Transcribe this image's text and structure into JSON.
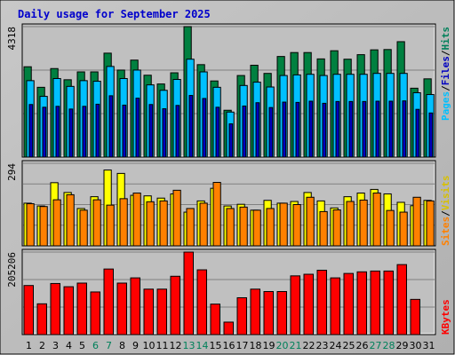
{
  "chart_data": [
    {
      "type": "bar",
      "title": "Daily usage for September 2025",
      "panel": "hits-files-pages",
      "max_label": "4318",
      "ylim": [
        0,
        4318
      ],
      "grid": true,
      "legend_position": "right",
      "legend": [
        "Pages",
        "Files",
        "Hits"
      ],
      "categories": [
        "1",
        "2",
        "3",
        "4",
        "5",
        "6",
        "7",
        "8",
        "9",
        "10",
        "11",
        "12",
        "13",
        "14",
        "15",
        "16",
        "17",
        "18",
        "19",
        "20",
        "21",
        "22",
        "23",
        "24",
        "25",
        "26",
        "27",
        "28",
        "29",
        "30",
        "31"
      ],
      "weekend_categories": [
        "6",
        "7",
        "13",
        "14",
        "20",
        "21",
        "27",
        "28"
      ],
      "series": [
        {
          "name": "Hits",
          "color": "#008040",
          "values": [
            2990,
            2310,
            2930,
            2560,
            2820,
            2820,
            3440,
            2880,
            3210,
            2710,
            2420,
            2790,
            4318,
            3060,
            2520,
            1550,
            2700,
            3040,
            2770,
            3330,
            3460,
            3460,
            3250,
            3520,
            3240,
            3390,
            3550,
            3560,
            3820,
            2280,
            2590
          ]
        },
        {
          "name": "Files",
          "color": "#00c0ff",
          "values": [
            2530,
            2010,
            2600,
            2340,
            2530,
            2510,
            3000,
            2600,
            2880,
            2390,
            2210,
            2570,
            3240,
            2820,
            2310,
            1490,
            2370,
            2480,
            2320,
            2700,
            2720,
            2740,
            2700,
            2740,
            2740,
            2740,
            2770,
            2770,
            2770,
            2130,
            2070
          ]
        },
        {
          "name": "Pages",
          "color": "#0000c0",
          "values": [
            1740,
            1650,
            1680,
            1590,
            1680,
            1750,
            2030,
            1720,
            1950,
            1740,
            1600,
            1710,
            2040,
            1940,
            1650,
            1100,
            1690,
            1800,
            1640,
            1820,
            1810,
            1850,
            1780,
            1840,
            1840,
            1840,
            1850,
            1850,
            1860,
            1580,
            1460
          ]
        }
      ]
    },
    {
      "type": "bar",
      "panel": "visits-sites",
      "max_label": "294",
      "ylim": [
        0,
        294
      ],
      "grid": true,
      "legend_position": "right",
      "legend": [
        "Sites",
        "Visits"
      ],
      "series": [
        {
          "name": "Visits",
          "color": "#ffff00",
          "values": [
            152,
            142,
            225,
            190,
            133,
            175,
            270,
            258,
            180,
            178,
            170,
            185,
            120,
            160,
            205,
            142,
            148,
            127,
            162,
            152,
            158,
            190,
            160,
            135,
            175,
            188,
            201,
            185,
            155,
            143,
            162
          ]
        },
        {
          "name": "Sites",
          "color": "#ff8000",
          "values": [
            150,
            140,
            164,
            182,
            127,
            164,
            145,
            168,
            188,
            157,
            160,
            198,
            133,
            152,
            226,
            133,
            138,
            127,
            133,
            152,
            147,
            173,
            122,
            128,
            158,
            163,
            188,
            126,
            120,
            173,
            160
          ]
        }
      ]
    },
    {
      "type": "bar",
      "panel": "kbytes",
      "max_label": "205206",
      "ylim": [
        0,
        205206
      ],
      "grid": true,
      "legend_position": "right",
      "legend": [
        "KBytes"
      ],
      "series": [
        {
          "name": "KBytes",
          "color": "#ff0000",
          "values": [
            122000,
            76500,
            127000,
            119000,
            128000,
            106000,
            163000,
            128000,
            141000,
            113000,
            113000,
            145000,
            205206,
            161000,
            75800,
            31000,
            91600,
            113000,
            107000,
            107000,
            146000,
            150000,
            160000,
            141000,
            152000,
            156000,
            158000,
            158000,
            174000,
            87500,
            0
          ]
        }
      ]
    }
  ]
}
